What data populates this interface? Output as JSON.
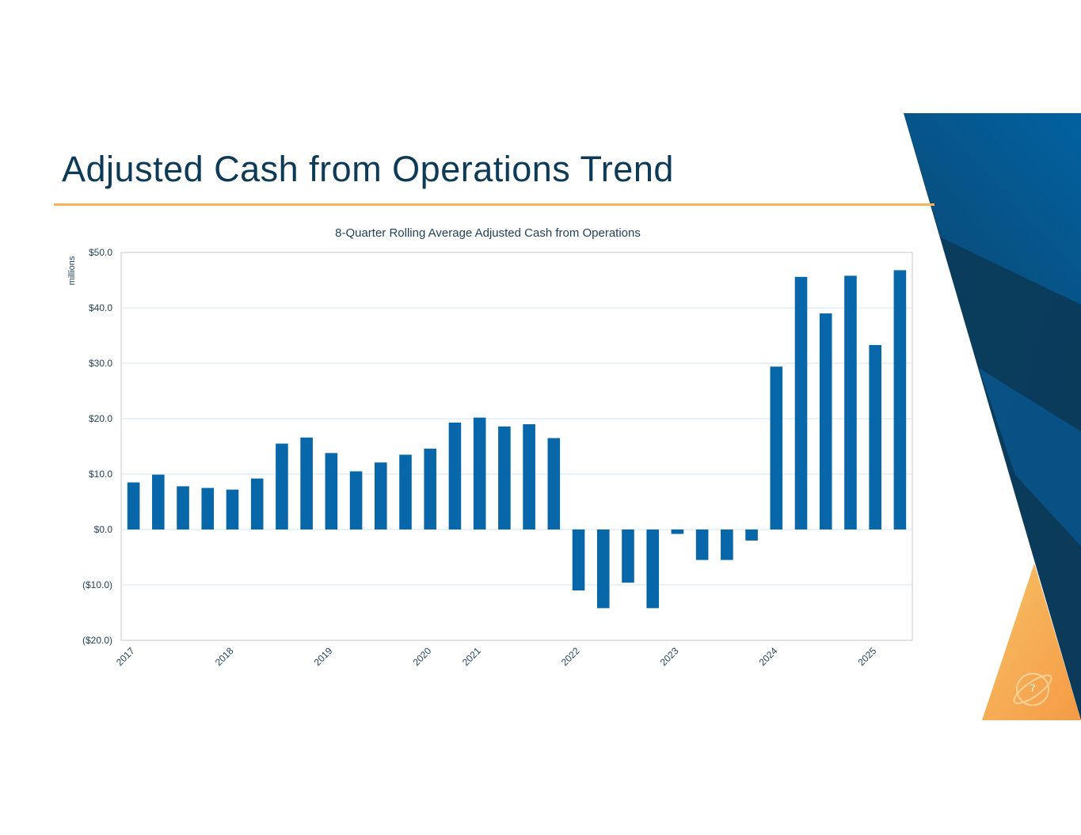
{
  "slide": {
    "title": "Adjusted Cash from Operations Trend",
    "page_number": "7"
  },
  "colors": {
    "title": "#0d3a56",
    "accent_rule": "#f5b35a",
    "bar": "#0767a8",
    "gridline": "#cfe7f3",
    "deco_navy": "#0b3a5c",
    "deco_blue": "#0a64a4",
    "deco_orange": "#f5a94e"
  },
  "chart_data": {
    "type": "bar",
    "title": "8-Quarter Rolling Average Adjusted Cash from Operations",
    "ylabel": "millions",
    "xlabel": "",
    "ylim": [
      -20,
      50
    ],
    "yticks": [
      50,
      40,
      30,
      20,
      10,
      0,
      -10,
      -20
    ],
    "ytick_labels": [
      "$50.0",
      "$40.0",
      "$30.0",
      "$20.0",
      "$10.0",
      "$0.0",
      "($10.0)",
      "($20.0)"
    ],
    "grid": true,
    "values": [
      8.5,
      9.9,
      7.8,
      7.5,
      7.2,
      9.2,
      15.5,
      16.6,
      13.8,
      10.5,
      12.1,
      13.5,
      14.6,
      19.3,
      20.2,
      18.6,
      19.0,
      16.5,
      -11.0,
      -14.2,
      -9.6,
      -14.2,
      -0.8,
      -5.5,
      -5.5,
      -2.0,
      29.4,
      45.6,
      39.0,
      45.8,
      33.3,
      46.8
    ],
    "x_labels": [
      {
        "label": "2017",
        "bar_index": 0
      },
      {
        "label": "2018",
        "bar_index": 4
      },
      {
        "label": "2019",
        "bar_index": 8
      },
      {
        "label": "2020",
        "bar_index": 12
      },
      {
        "label": "2021",
        "bar_index": 14
      },
      {
        "label": "2022",
        "bar_index": 18
      },
      {
        "label": "2023",
        "bar_index": 22
      },
      {
        "label": "2024",
        "bar_index": 26
      },
      {
        "label": "2025",
        "bar_index": 30
      }
    ]
  }
}
